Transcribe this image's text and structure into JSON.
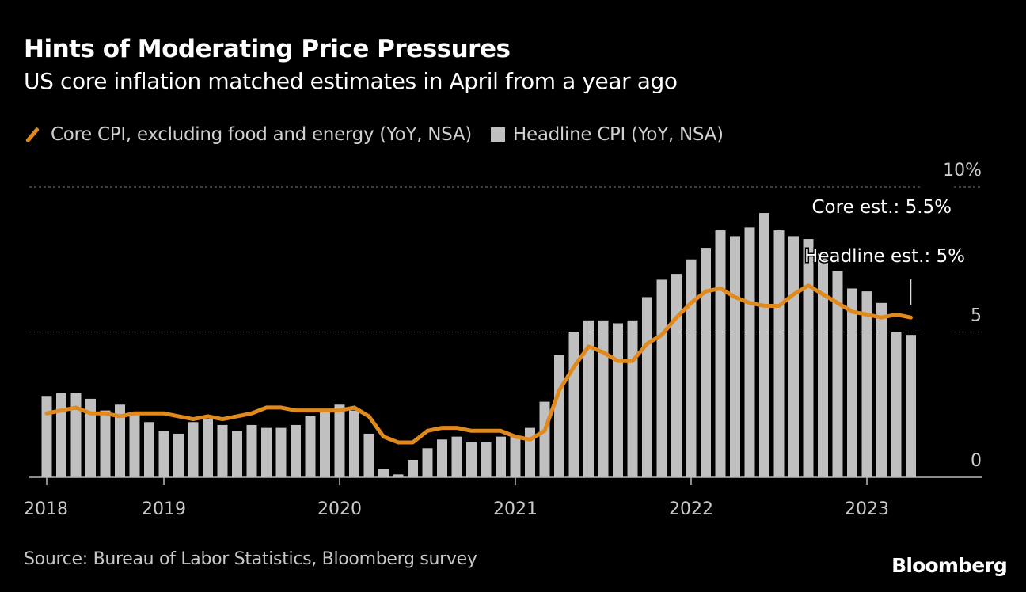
{
  "colors": {
    "background": "#000000",
    "core": "#e08a1e",
    "headline": "#c0c0c0",
    "grid": "#777777",
    "text": "#cccccc"
  },
  "chart_data": {
    "type": "bar+line",
    "title": "Hints of Moderating Price Pressures",
    "subtitle": "US core inflation matched estimates in April from a year ago",
    "legend_position": "top-left",
    "x_start": "2018-05",
    "x_end": "2023-04",
    "x_tick_labels": [
      "2018",
      "2019",
      "2020",
      "2021",
      "2022",
      "2023"
    ],
    "y_tick_labels": [
      "0",
      "5",
      "10%"
    ],
    "ylim": [
      0,
      10
    ],
    "grid": true,
    "series": [
      {
        "name": "Core CPI, excluding food and energy (YoY, NSA)",
        "type": "line",
        "values": [
          2.2,
          2.3,
          2.4,
          2.2,
          2.2,
          2.1,
          2.2,
          2.2,
          2.2,
          2.1,
          2.0,
          2.1,
          2.0,
          2.1,
          2.2,
          2.4,
          2.4,
          2.3,
          2.3,
          2.3,
          2.3,
          2.4,
          2.1,
          1.4,
          1.2,
          1.2,
          1.6,
          1.7,
          1.7,
          1.6,
          1.6,
          1.6,
          1.4,
          1.3,
          1.6,
          3.0,
          3.8,
          4.5,
          4.3,
          4.0,
          4.0,
          4.6,
          4.9,
          5.5,
          6.0,
          6.4,
          6.5,
          6.2,
          6.0,
          5.9,
          5.9,
          6.3,
          6.6,
          6.3,
          6.0,
          5.7,
          5.6,
          5.5,
          5.6,
          5.5
        ]
      },
      {
        "name": "Headline CPI (YoY, NSA)",
        "type": "bar",
        "values": [
          2.8,
          2.9,
          2.9,
          2.7,
          2.3,
          2.5,
          2.2,
          1.9,
          1.6,
          1.5,
          1.9,
          2.0,
          1.8,
          1.6,
          1.8,
          1.7,
          1.7,
          1.8,
          2.1,
          2.3,
          2.5,
          2.3,
          1.5,
          0.3,
          0.1,
          0.6,
          1.0,
          1.3,
          1.4,
          1.2,
          1.2,
          1.4,
          1.4,
          1.7,
          2.6,
          4.2,
          5.0,
          5.4,
          5.4,
          5.3,
          5.4,
          6.2,
          6.8,
          7.0,
          7.5,
          7.9,
          8.5,
          8.3,
          8.6,
          9.1,
          8.5,
          8.3,
          8.2,
          7.7,
          7.1,
          6.5,
          6.4,
          6.0,
          5.0,
          4.9
        ]
      }
    ],
    "annotations": [
      "Core est.: 5.5%",
      "Headline est.: 5%"
    ]
  },
  "source": "Source: Bureau of Labor Statistics, Bloomberg survey",
  "logo": "Bloomberg"
}
